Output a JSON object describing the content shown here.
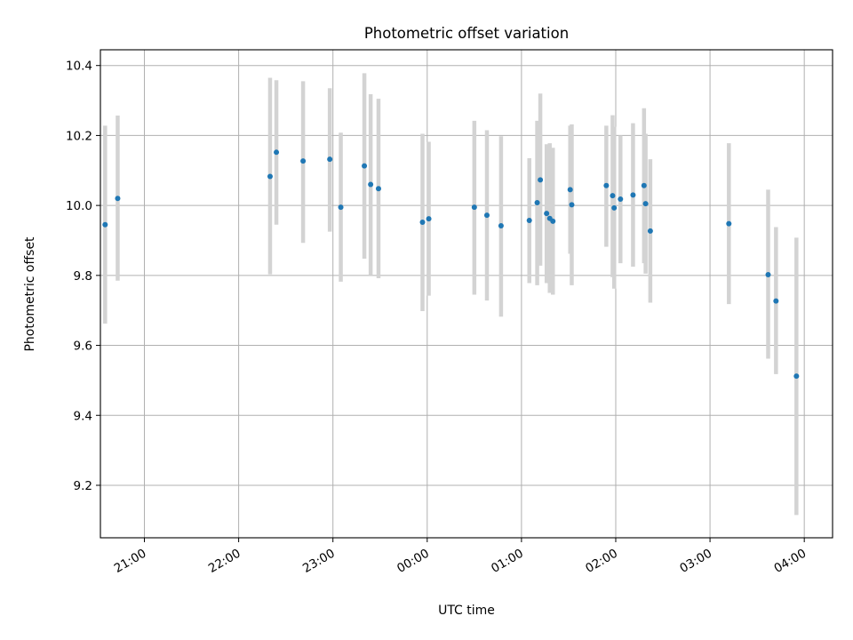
{
  "chart_data": {
    "type": "scatter",
    "title": "Photometric offset variation",
    "xlabel": "UTC time",
    "ylabel": "Photometric offset",
    "x_tick_labels": [
      "21:00",
      "22:00",
      "23:00",
      "00:00",
      "01:00",
      "02:00",
      "03:00",
      "04:00"
    ],
    "y_ticks": [
      9.2,
      9.4,
      9.6,
      9.8,
      10.0,
      10.2,
      10.4
    ],
    "y_tick_labels": [
      "9.2",
      "9.4",
      "9.6",
      "9.8",
      "10.0",
      "10.2",
      "10.4"
    ],
    "xlim": [
      "20:32",
      "04:18"
    ],
    "ylim": [
      9.05,
      10.445
    ],
    "grid": true,
    "marker_color": "#1f77b4",
    "errorbar_color": "#d3d3d3",
    "points": [
      {
        "t": "20:35",
        "y": 9.945,
        "lo": 9.662,
        "hi": 10.228
      },
      {
        "t": "20:43",
        "y": 10.02,
        "lo": 9.785,
        "hi": 10.257
      },
      {
        "t": "22:20",
        "y": 10.083,
        "lo": 9.803,
        "hi": 10.365
      },
      {
        "t": "22:24",
        "y": 10.152,
        "lo": 9.945,
        "hi": 10.358
      },
      {
        "t": "22:41",
        "y": 10.127,
        "lo": 9.893,
        "hi": 10.355
      },
      {
        "t": "22:58",
        "y": 10.132,
        "lo": 9.925,
        "hi": 10.335
      },
      {
        "t": "23:05",
        "y": 9.995,
        "lo": 9.782,
        "hi": 10.208
      },
      {
        "t": "23:20",
        "y": 10.113,
        "lo": 9.848,
        "hi": 10.378
      },
      {
        "t": "23:24",
        "y": 10.06,
        "lo": 9.802,
        "hi": 10.318
      },
      {
        "t": "23:29",
        "y": 10.048,
        "lo": 9.792,
        "hi": 10.305
      },
      {
        "t": "23:57",
        "y": 9.952,
        "lo": 9.698,
        "hi": 10.205
      },
      {
        "t": "00:01",
        "y": 9.962,
        "lo": 9.742,
        "hi": 10.182
      },
      {
        "t": "00:30",
        "y": 9.995,
        "lo": 9.745,
        "hi": 10.242
      },
      {
        "t": "00:38",
        "y": 9.972,
        "lo": 9.728,
        "hi": 10.215
      },
      {
        "t": "00:47",
        "y": 9.942,
        "lo": 9.682,
        "hi": 10.198
      },
      {
        "t": "01:05",
        "y": 9.957,
        "lo": 9.778,
        "hi": 10.135
      },
      {
        "t": "01:10",
        "y": 10.008,
        "lo": 9.772,
        "hi": 10.242
      },
      {
        "t": "01:12",
        "y": 10.073,
        "lo": 9.828,
        "hi": 10.32
      },
      {
        "t": "01:16",
        "y": 9.977,
        "lo": 9.778,
        "hi": 10.175
      },
      {
        "t": "01:18",
        "y": 9.963,
        "lo": 9.75,
        "hi": 10.178
      },
      {
        "t": "01:20",
        "y": 9.955,
        "lo": 9.745,
        "hi": 10.165
      },
      {
        "t": "01:31",
        "y": 10.045,
        "lo": 9.862,
        "hi": 10.228
      },
      {
        "t": "01:32",
        "y": 10.002,
        "lo": 9.772,
        "hi": 10.232
      },
      {
        "t": "01:54",
        "y": 10.057,
        "lo": 9.882,
        "hi": 10.228
      },
      {
        "t": "01:58",
        "y": 10.028,
        "lo": 9.795,
        "hi": 10.258
      },
      {
        "t": "01:59",
        "y": 9.993,
        "lo": 9.762,
        "hi": 10.225
      },
      {
        "t": "02:03",
        "y": 10.018,
        "lo": 9.835,
        "hi": 10.2
      },
      {
        "t": "02:11",
        "y": 10.03,
        "lo": 9.825,
        "hi": 10.235
      },
      {
        "t": "02:18",
        "y": 10.057,
        "lo": 9.835,
        "hi": 10.278
      },
      {
        "t": "02:19",
        "y": 10.005,
        "lo": 9.805,
        "hi": 10.205
      },
      {
        "t": "02:22",
        "y": 9.927,
        "lo": 9.722,
        "hi": 10.132
      },
      {
        "t": "03:12",
        "y": 9.948,
        "lo": 9.718,
        "hi": 10.178
      },
      {
        "t": "03:37",
        "y": 9.802,
        "lo": 9.562,
        "hi": 10.045
      },
      {
        "t": "03:42",
        "y": 9.727,
        "lo": 9.518,
        "hi": 9.938
      },
      {
        "t": "03:55",
        "y": 9.512,
        "lo": 9.115,
        "hi": 9.908
      }
    ]
  }
}
